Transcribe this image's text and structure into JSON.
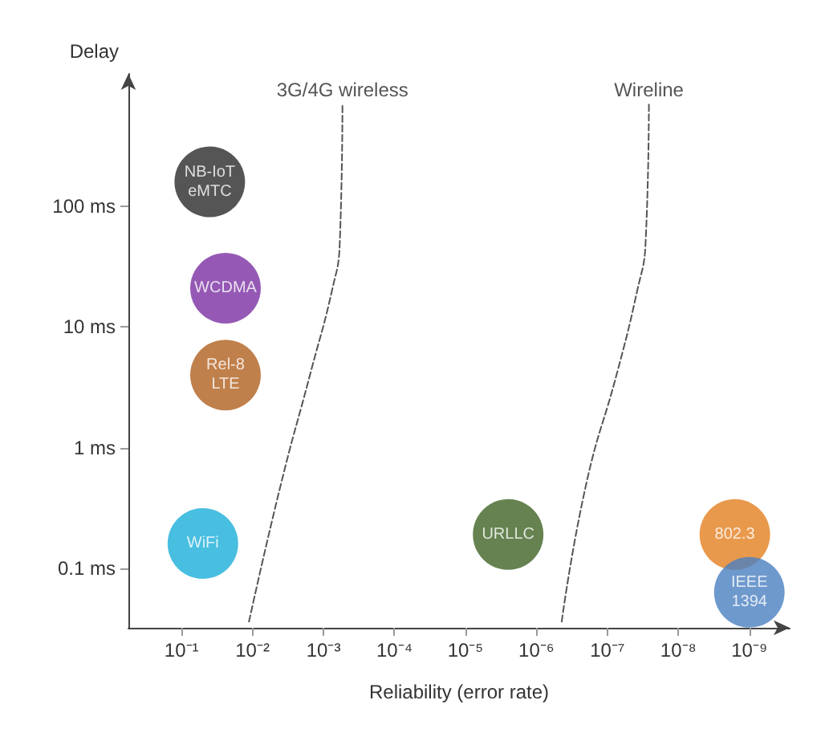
{
  "chart_data": {
    "type": "scatter",
    "xlabel": "Reliability (error rate)",
    "ylabel": "Delay",
    "log": "xy",
    "marker": "circle",
    "legend": false,
    "grid": false,
    "xlim": [
      0.56,
      2.7e-10
    ],
    "xticks": [
      {
        "value": 0.1,
        "label": "10⁻¹"
      },
      {
        "value": 0.01,
        "label": "10⁻²"
      },
      {
        "value": 0.001,
        "label": "10⁻³"
      },
      {
        "value": 0.0001,
        "label": "10⁻⁴"
      },
      {
        "value": 1e-05,
        "label": "10⁻⁵"
      },
      {
        "value": 1e-06,
        "label": "10⁻⁶"
      },
      {
        "value": 1e-07,
        "label": "10⁻⁷"
      },
      {
        "value": 1e-08,
        "label": "10⁻⁸"
      },
      {
        "value": 1e-09,
        "label": "10⁻⁹"
      }
    ],
    "ylim": [
      0.032,
      1260
    ],
    "yticks": [
      {
        "value": 0.1,
        "label": "0.1 ms"
      },
      {
        "value": 1,
        "label": "1 ms"
      },
      {
        "value": 10,
        "label": "10 ms"
      },
      {
        "value": 100,
        "label": "100 ms"
      }
    ],
    "series": [
      {
        "name": "NB-IoT\neMTC",
        "color": "#2a2a2a",
        "x": [
          0.04
        ],
        "values": [
          160
        ]
      },
      {
        "name": "WCDMA",
        "color": "#7b2fa3",
        "x": [
          0.024
        ],
        "values": [
          21
        ]
      },
      {
        "name": "Rel-8\nLTE",
        "color": "#b0601e",
        "x": [
          0.024
        ],
        "values": [
          4
        ]
      },
      {
        "name": "WiFi",
        "color": "#1aaed8",
        "x": [
          0.05
        ],
        "values": [
          0.16
        ]
      },
      {
        "name": "URLLC",
        "color": "#3f6324",
        "x": [
          2.5e-06
        ],
        "values": [
          0.19
        ]
      },
      {
        "name": "802.3",
        "color": "#e3801f",
        "x": [
          1.6e-09
        ],
        "values": [
          0.19
        ]
      },
      {
        "name": "IEEE\n1394",
        "color": "#4a7fc1",
        "x": [
          1e-09
        ],
        "values": [
          0.063
        ]
      },
      {
        "name": "3G/4G wireless",
        "type": "line",
        "line_style": "dashed",
        "marker": "none",
        "color": "#555555",
        "x": [
          0.0112,
          0.004,
          0.0015,
          0.00076,
          0.00059,
          0.00054
        ],
        "values": [
          0.036,
          0.49,
          4.3,
          20,
          49,
          700
        ]
      },
      {
        "name": "Wireline",
        "type": "line",
        "line_style": "dashed",
        "marker": "none",
        "color": "#555555",
        "x": [
          4.4e-07,
          2e-07,
          7.2e-08,
          3.8e-08,
          2.9e-08,
          2.6e-08
        ],
        "values": [
          0.036,
          0.49,
          4.3,
          20,
          49,
          700
        ]
      }
    ]
  }
}
